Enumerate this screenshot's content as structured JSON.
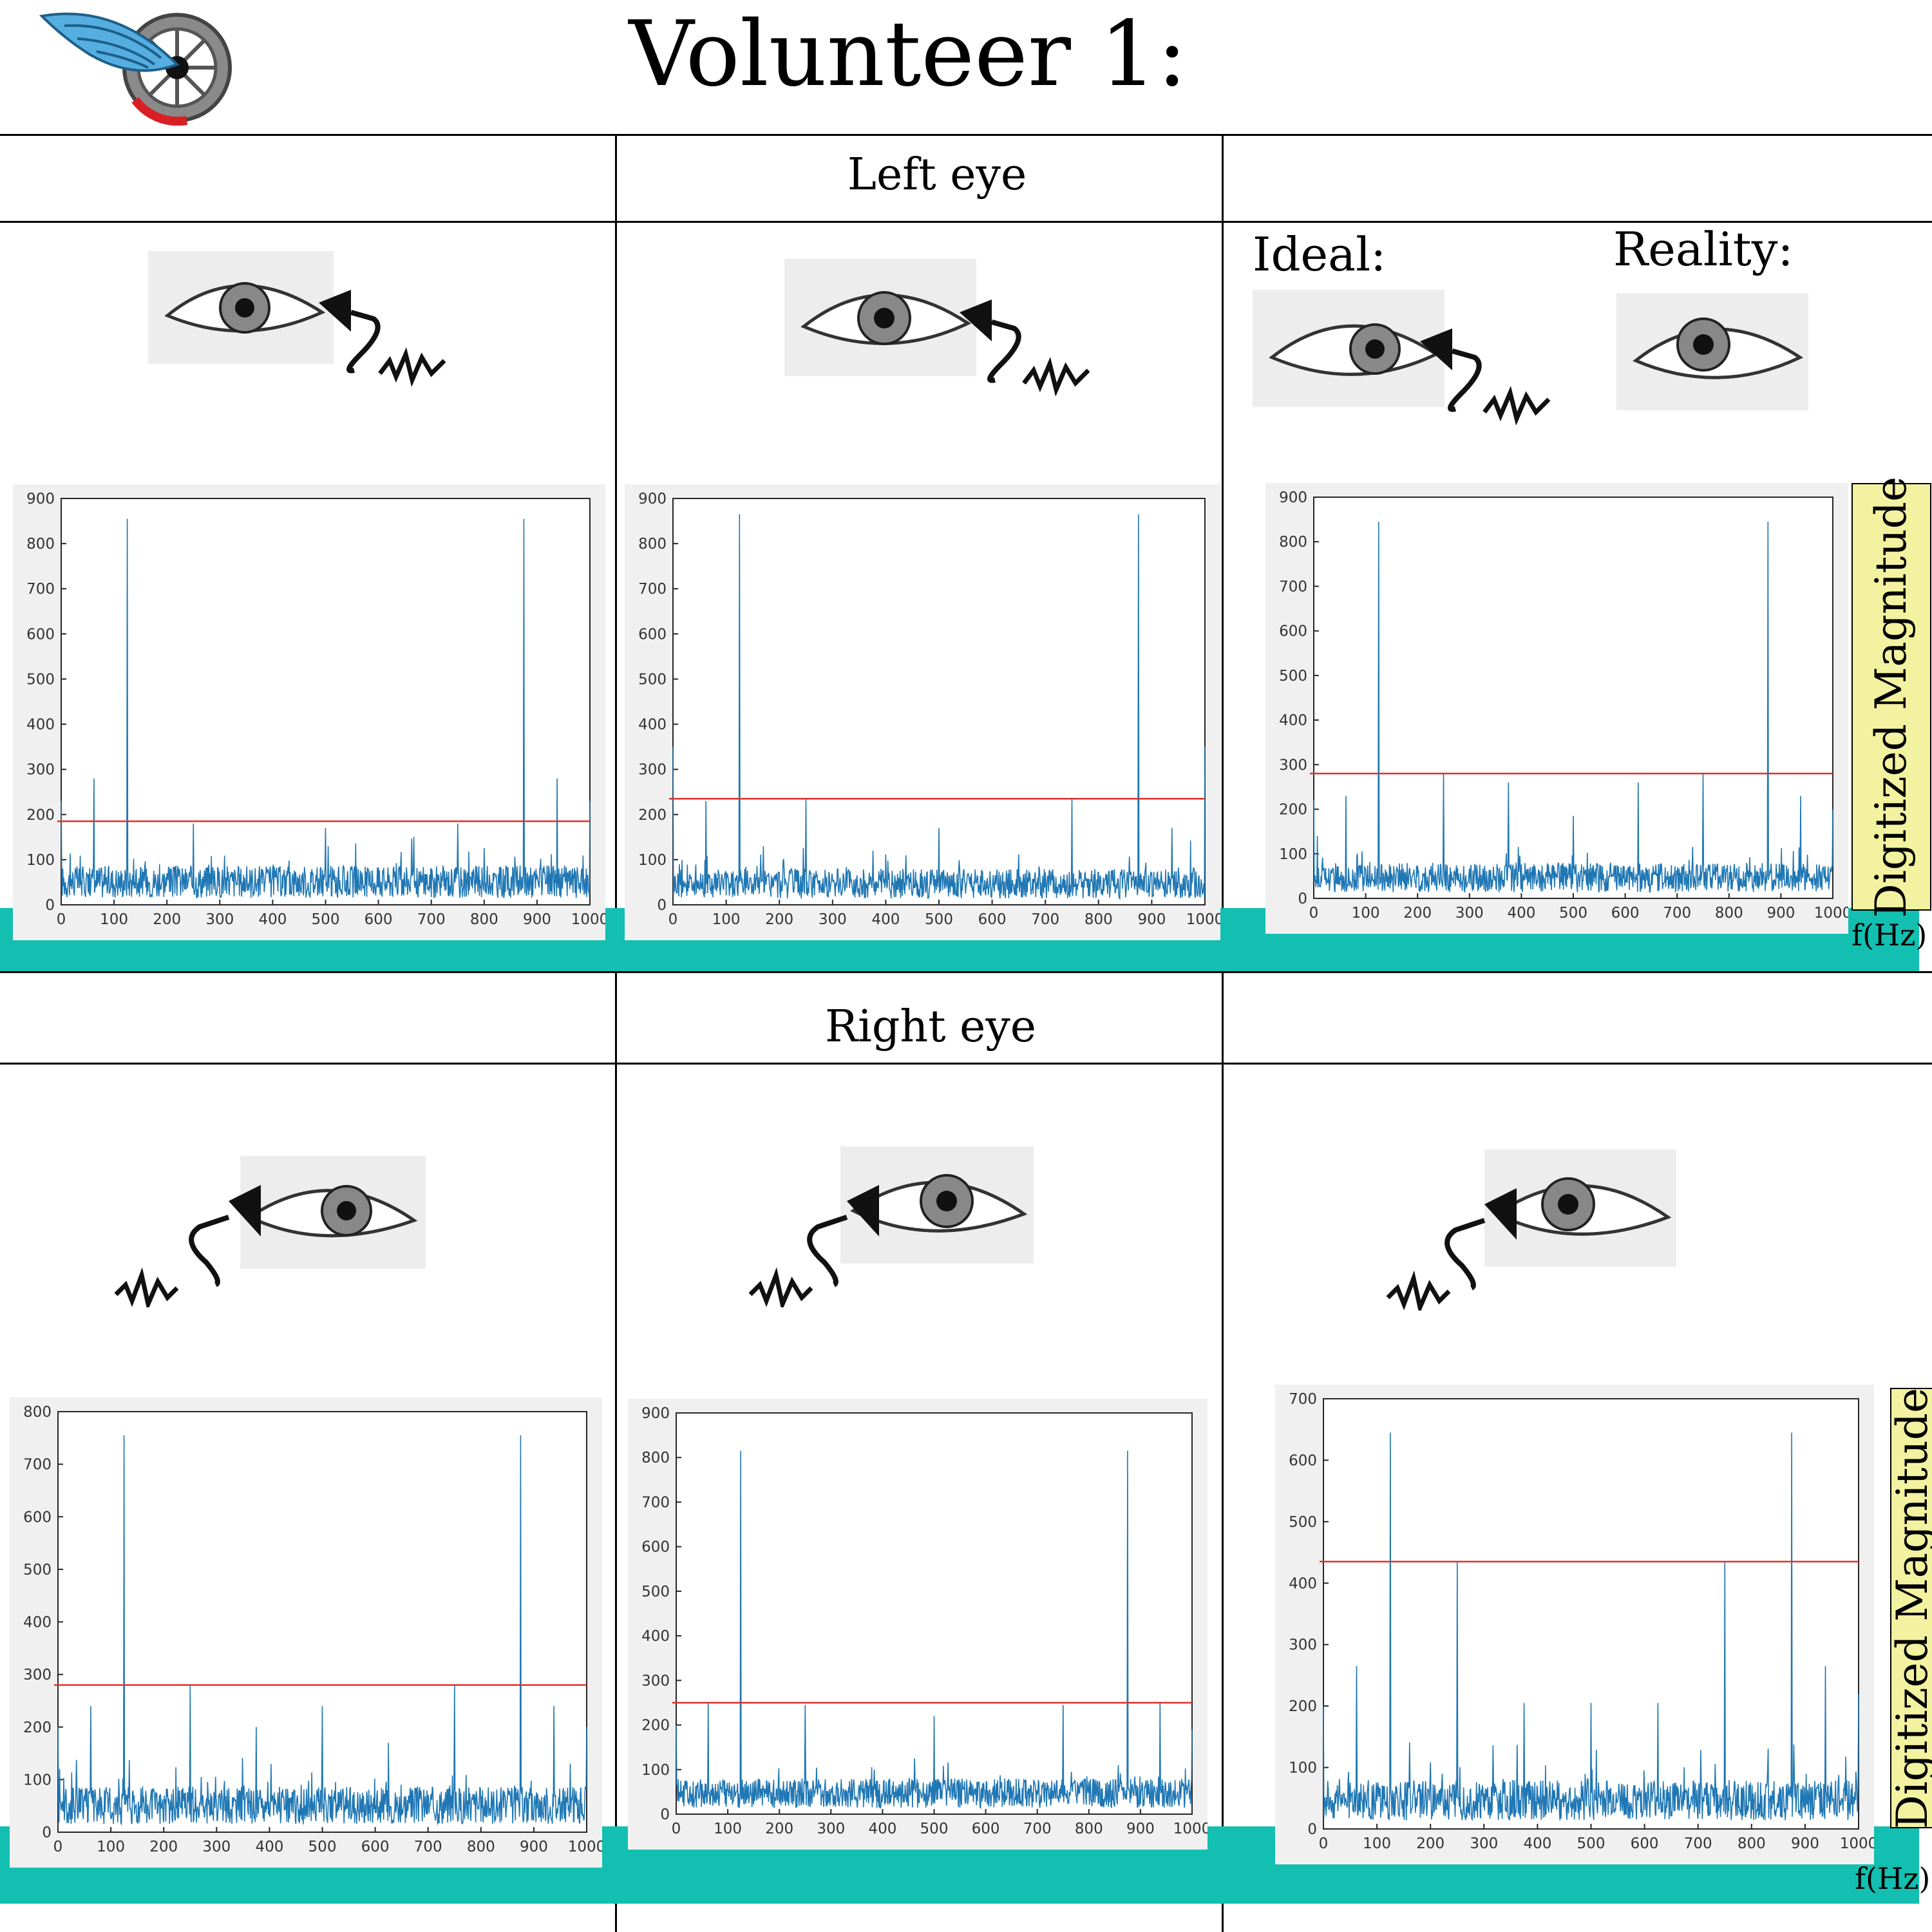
{
  "title": "Volunteer 1:",
  "sections": {
    "left": "Left eye",
    "right": "Right eye"
  },
  "captions": {
    "ideal": "Ideal:",
    "reality": "Reality:"
  },
  "axis_labels": {
    "y": "Digitized Magnitude",
    "x": "f(Hz)"
  },
  "colors": {
    "signal": "#1f77b4",
    "threshold": "#e0302a",
    "highlight": "#12bfb0",
    "label_box": "#f2f2a0"
  },
  "icons": [
    "wheel-logo-icon",
    "eye-icon",
    "microphone-icon"
  ],
  "chart_data": [
    {
      "type": "line",
      "title": "",
      "xlabel": "f(Hz)",
      "ylabel": "Digitized Magnitude",
      "xlim": [
        0,
        1000
      ],
      "ylim": [
        0,
        900
      ],
      "xticks": [
        0,
        100,
        200,
        300,
        400,
        500,
        600,
        700,
        800,
        900,
        1000
      ],
      "yticks": [
        0,
        100,
        200,
        300,
        400,
        500,
        600,
        700,
        800,
        900
      ],
      "threshold": 185,
      "noise_mean": 60,
      "peaks": [
        [
          0,
          230
        ],
        [
          62,
          280
        ],
        [
          125,
          855
        ],
        [
          250,
          180
        ],
        [
          500,
          170
        ],
        [
          750,
          180
        ],
        [
          875,
          855
        ],
        [
          938,
          280
        ],
        [
          1000,
          230
        ]
      ]
    },
    {
      "type": "line",
      "title": "",
      "xlabel": "f(Hz)",
      "ylabel": "Digitized Magnitude",
      "xlim": [
        0,
        1000
      ],
      "ylim": [
        0,
        900
      ],
      "xticks": [
        0,
        100,
        200,
        300,
        400,
        500,
        600,
        700,
        800,
        900,
        1000
      ],
      "yticks": [
        0,
        100,
        200,
        300,
        400,
        500,
        600,
        700,
        800,
        900
      ],
      "threshold": 235,
      "noise_mean": 55,
      "peaks": [
        [
          0,
          350
        ],
        [
          62,
          230
        ],
        [
          125,
          865
        ],
        [
          250,
          235
        ],
        [
          500,
          170
        ],
        [
          750,
          235
        ],
        [
          875,
          865
        ],
        [
          938,
          170
        ],
        [
          1000,
          350
        ]
      ]
    },
    {
      "type": "line",
      "title": "",
      "xlabel": "f(Hz)",
      "ylabel": "Digitized Magnitude",
      "xlim": [
        0,
        1000
      ],
      "ylim": [
        0,
        900
      ],
      "xticks": [
        0,
        100,
        200,
        300,
        400,
        500,
        600,
        700,
        800,
        900,
        1000
      ],
      "yticks": [
        0,
        100,
        200,
        300,
        400,
        500,
        600,
        700,
        800,
        900
      ],
      "threshold": 280,
      "noise_mean": 55,
      "peaks": [
        [
          0,
          220
        ],
        [
          62,
          230
        ],
        [
          125,
          845
        ],
        [
          250,
          280
        ],
        [
          375,
          260
        ],
        [
          500,
          185
        ],
        [
          625,
          260
        ],
        [
          750,
          280
        ],
        [
          875,
          845
        ],
        [
          938,
          230
        ],
        [
          1000,
          200
        ]
      ]
    },
    {
      "type": "line",
      "title": "",
      "xlabel": "f(Hz)",
      "ylabel": "Digitized Magnitude",
      "xlim": [
        0,
        1000
      ],
      "ylim": [
        0,
        800
      ],
      "xticks": [
        0,
        100,
        200,
        300,
        400,
        500,
        600,
        700,
        800,
        900,
        1000
      ],
      "yticks": [
        0,
        100,
        200,
        300,
        400,
        500,
        600,
        700,
        800
      ],
      "threshold": 280,
      "noise_mean": 60,
      "peaks": [
        [
          0,
          200
        ],
        [
          62,
          240
        ],
        [
          125,
          755
        ],
        [
          250,
          280
        ],
        [
          375,
          200
        ],
        [
          500,
          240
        ],
        [
          625,
          170
        ],
        [
          750,
          280
        ],
        [
          875,
          755
        ],
        [
          938,
          240
        ],
        [
          1000,
          200
        ]
      ]
    },
    {
      "type": "line",
      "title": "",
      "xlabel": "f(Hz)",
      "ylabel": "Digitized Magnitude",
      "xlim": [
        0,
        1000
      ],
      "ylim": [
        0,
        900
      ],
      "xticks": [
        0,
        100,
        200,
        300,
        400,
        500,
        600,
        700,
        800,
        900,
        1000
      ],
      "yticks": [
        0,
        100,
        200,
        300,
        400,
        500,
        600,
        700,
        800,
        900
      ],
      "threshold": 250,
      "noise_mean": 55,
      "peaks": [
        [
          0,
          200
        ],
        [
          62,
          250
        ],
        [
          125,
          815
        ],
        [
          250,
          245
        ],
        [
          500,
          220
        ],
        [
          750,
          245
        ],
        [
          875,
          815
        ],
        [
          938,
          250
        ],
        [
          1000,
          190
        ]
      ]
    },
    {
      "type": "line",
      "title": "",
      "xlabel": "f(Hz)",
      "ylabel": "Digitized Magnitude",
      "xlim": [
        0,
        1000
      ],
      "ylim": [
        0,
        700
      ],
      "xticks": [
        0,
        100,
        200,
        300,
        400,
        500,
        600,
        700,
        800,
        900,
        1000
      ],
      "yticks": [
        0,
        100,
        200,
        300,
        400,
        500,
        600,
        700
      ],
      "threshold": 435,
      "noise_mean": 55,
      "peaks": [
        [
          0,
          200
        ],
        [
          62,
          265
        ],
        [
          125,
          645
        ],
        [
          250,
          435
        ],
        [
          375,
          205
        ],
        [
          500,
          205
        ],
        [
          625,
          205
        ],
        [
          750,
          435
        ],
        [
          875,
          645
        ],
        [
          938,
          265
        ],
        [
          1000,
          220
        ]
      ]
    }
  ]
}
